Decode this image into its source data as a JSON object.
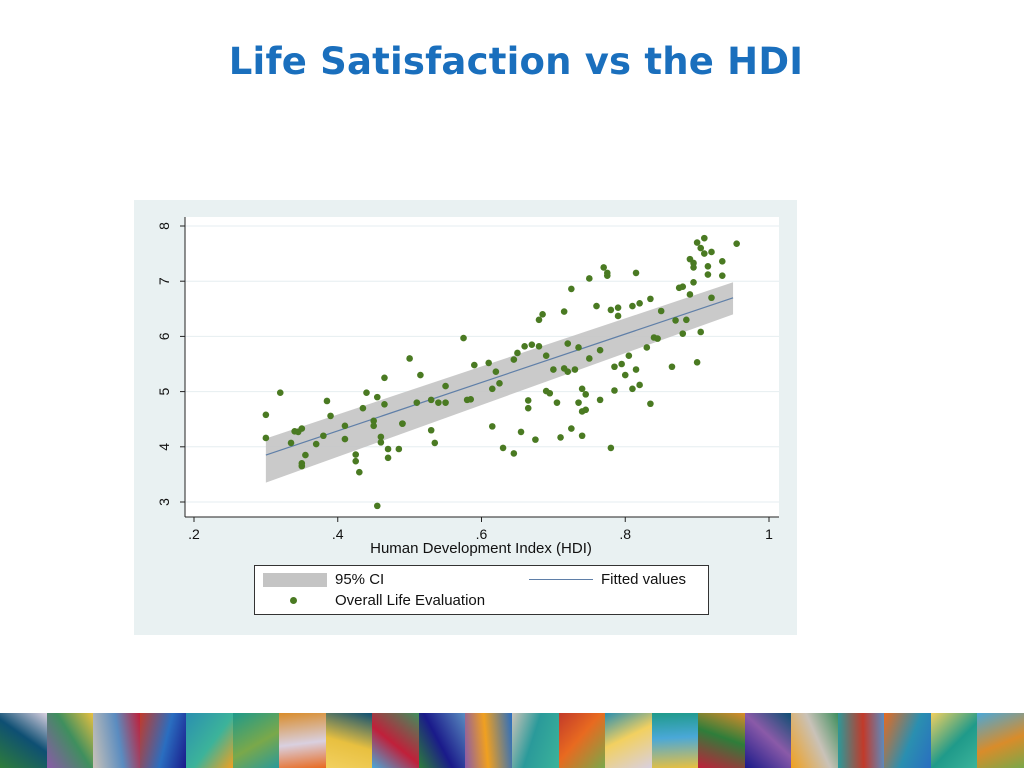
{
  "slide": {
    "title": "Life Satisfaction vs the HDI"
  },
  "colors": {
    "title": "#1a6fbd",
    "chart_background": "#e9f1f2",
    "scatter_points": "#4a7a22",
    "fitted_line": "#5f7fa8",
    "confidence_band": "#c4c4c4"
  },
  "chart_data": {
    "type": "scatter",
    "title": "",
    "xlabel": "Human Development Index (HDI)",
    "ylabel": "",
    "xlim": [
      0.2,
      1.0
    ],
    "ylim": [
      3,
      8
    ],
    "x_ticks": [
      0.2,
      0.4,
      0.6,
      0.8,
      1.0
    ],
    "x_tick_labels": [
      ".2",
      ".4",
      ".6",
      ".8",
      "1"
    ],
    "y_ticks": [
      3,
      4,
      5,
      6,
      7,
      8
    ],
    "y_tick_labels": [
      "3",
      "4",
      "5",
      "6",
      "7",
      "8"
    ],
    "grid": true,
    "legend": {
      "placement": "bottom",
      "entries": [
        "95% CI",
        "Fitted values",
        "Overall Life Evaluation"
      ]
    },
    "fitted_line": {
      "x": [
        0.3,
        0.95
      ],
      "y": [
        3.85,
        6.7
      ]
    },
    "ci_band": {
      "x": [
        0.3,
        0.95
      ],
      "lower": [
        3.35,
        6.4
      ],
      "upper": [
        4.15,
        6.98
      ]
    },
    "series": [
      {
        "name": "Overall Life Evaluation",
        "points": [
          [
            0.3,
            4.58
          ],
          [
            0.3,
            4.16
          ],
          [
            0.32,
            4.98
          ],
          [
            0.335,
            4.07
          ],
          [
            0.34,
            4.28
          ],
          [
            0.345,
            4.27
          ],
          [
            0.35,
            4.33
          ],
          [
            0.35,
            3.65
          ],
          [
            0.35,
            3.7
          ],
          [
            0.355,
            3.85
          ],
          [
            0.37,
            4.05
          ],
          [
            0.38,
            4.2
          ],
          [
            0.385,
            4.83
          ],
          [
            0.39,
            4.56
          ],
          [
            0.41,
            4.38
          ],
          [
            0.41,
            4.14
          ],
          [
            0.425,
            3.86
          ],
          [
            0.425,
            3.74
          ],
          [
            0.43,
            3.54
          ],
          [
            0.435,
            4.7
          ],
          [
            0.44,
            4.98
          ],
          [
            0.45,
            4.38
          ],
          [
            0.45,
            4.47
          ],
          [
            0.455,
            4.9
          ],
          [
            0.455,
            2.93
          ],
          [
            0.46,
            4.18
          ],
          [
            0.46,
            4.08
          ],
          [
            0.465,
            4.77
          ],
          [
            0.465,
            5.25
          ],
          [
            0.47,
            3.96
          ],
          [
            0.47,
            3.8
          ],
          [
            0.485,
            3.96
          ],
          [
            0.49,
            4.42
          ],
          [
            0.49,
            4.42
          ],
          [
            0.5,
            5.6
          ],
          [
            0.51,
            4.8
          ],
          [
            0.515,
            5.3
          ],
          [
            0.53,
            4.3
          ],
          [
            0.53,
            4.85
          ],
          [
            0.535,
            4.07
          ],
          [
            0.54,
            4.8
          ],
          [
            0.55,
            4.8
          ],
          [
            0.55,
            5.1
          ],
          [
            0.575,
            5.97
          ],
          [
            0.58,
            4.85
          ],
          [
            0.585,
            4.86
          ],
          [
            0.59,
            5.48
          ],
          [
            0.61,
            5.52
          ],
          [
            0.615,
            4.37
          ],
          [
            0.615,
            5.05
          ],
          [
            0.62,
            5.36
          ],
          [
            0.625,
            5.15
          ],
          [
            0.63,
            3.98
          ],
          [
            0.645,
            3.88
          ],
          [
            0.645,
            5.58
          ],
          [
            0.65,
            5.7
          ],
          [
            0.655,
            4.27
          ],
          [
            0.66,
            5.82
          ],
          [
            0.665,
            4.7
          ],
          [
            0.665,
            4.84
          ],
          [
            0.67,
            5.85
          ],
          [
            0.675,
            4.13
          ],
          [
            0.68,
            5.82
          ],
          [
            0.68,
            6.3
          ],
          [
            0.685,
            6.4
          ],
          [
            0.69,
            5.01
          ],
          [
            0.69,
            5.65
          ],
          [
            0.695,
            4.97
          ],
          [
            0.7,
            5.4
          ],
          [
            0.705,
            4.8
          ],
          [
            0.71,
            4.17
          ],
          [
            0.715,
            5.42
          ],
          [
            0.715,
            6.45
          ],
          [
            0.72,
            5.36
          ],
          [
            0.72,
            5.87
          ],
          [
            0.725,
            4.33
          ],
          [
            0.725,
            6.86
          ],
          [
            0.73,
            5.4
          ],
          [
            0.735,
            5.8
          ],
          [
            0.735,
            4.8
          ],
          [
            0.74,
            5.05
          ],
          [
            0.74,
            4.64
          ],
          [
            0.74,
            4.2
          ],
          [
            0.745,
            4.67
          ],
          [
            0.745,
            4.95
          ],
          [
            0.75,
            7.05
          ],
          [
            0.75,
            5.6
          ],
          [
            0.76,
            6.55
          ],
          [
            0.765,
            5.75
          ],
          [
            0.765,
            4.85
          ],
          [
            0.77,
            7.25
          ],
          [
            0.775,
            7.1
          ],
          [
            0.775,
            7.15
          ],
          [
            0.78,
            3.98
          ],
          [
            0.78,
            6.48
          ],
          [
            0.785,
            5.02
          ],
          [
            0.785,
            5.45
          ],
          [
            0.79,
            6.37
          ],
          [
            0.79,
            6.52
          ],
          [
            0.795,
            5.5
          ],
          [
            0.8,
            5.3
          ],
          [
            0.805,
            5.65
          ],
          [
            0.81,
            6.55
          ],
          [
            0.81,
            5.05
          ],
          [
            0.815,
            5.4
          ],
          [
            0.815,
            7.15
          ],
          [
            0.82,
            6.6
          ],
          [
            0.82,
            5.12
          ],
          [
            0.83,
            5.8
          ],
          [
            0.835,
            6.68
          ],
          [
            0.835,
            4.78
          ],
          [
            0.84,
            5.98
          ],
          [
            0.845,
            5.96
          ],
          [
            0.85,
            6.46
          ],
          [
            0.865,
            5.45
          ],
          [
            0.87,
            6.29
          ],
          [
            0.875,
            6.88
          ],
          [
            0.88,
            6.05
          ],
          [
            0.88,
            6.9
          ],
          [
            0.885,
            6.3
          ],
          [
            0.89,
            6.76
          ],
          [
            0.89,
            7.4
          ],
          [
            0.895,
            7.33
          ],
          [
            0.895,
            6.98
          ],
          [
            0.895,
            7.25
          ],
          [
            0.9,
            5.53
          ],
          [
            0.9,
            7.7
          ],
          [
            0.905,
            7.6
          ],
          [
            0.905,
            6.08
          ],
          [
            0.91,
            7.5
          ],
          [
            0.91,
            7.78
          ],
          [
            0.915,
            7.12
          ],
          [
            0.915,
            7.27
          ],
          [
            0.92,
            7.53
          ],
          [
            0.92,
            6.7
          ],
          [
            0.935,
            7.1
          ],
          [
            0.935,
            7.36
          ],
          [
            0.955,
            7.68
          ]
        ]
      }
    ]
  },
  "bottom_strip": {
    "tiles": [
      "#2e7d3a",
      "#8a5aa8",
      "#c9c2b8",
      "#c23a2a",
      "#2a8fb0",
      "#1f9a8a",
      "#d98c2a",
      "#0e4f73",
      "#3f8f5e",
      "#5a8cc0",
      "#2a6ec0",
      "#3cb39a",
      "#7aa84a",
      "#d9d0e0",
      "#e8c040",
      "#c0203a",
      "#1a1a8a",
      "#f0a020",
      "#2a9a9a",
      "#e86a20",
      "#f2d060",
      "#4aa8d8"
    ]
  }
}
